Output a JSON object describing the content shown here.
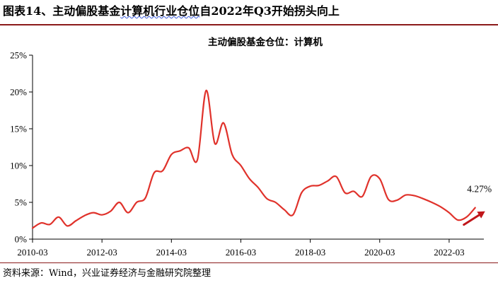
{
  "figure": {
    "number": "图表14、",
    "title_prefix": "主动偏股基金",
    "title_squiggle": "计算机行业仓位",
    "title_suffix": "自2022年Q3开始拐头向上",
    "source": "资料来源：Wind，兴业证券经济与金融研究院整理"
  },
  "colors": {
    "line": "#e0322b",
    "arrow": "#c0161a",
    "rule": "#8b1a1a",
    "axis": "#000000"
  },
  "chart_data": {
    "type": "line",
    "title": "主动偏股基金仓位：计算机",
    "xlabel": "",
    "ylabel": "",
    "x_ticks": [
      "2010-03",
      "2012-03",
      "2014-03",
      "2016-03",
      "2018-03",
      "2020-03",
      "2022-03"
    ],
    "y_ticks": [
      "0%",
      "5%",
      "10%",
      "15%",
      "20%",
      "25%"
    ],
    "ylim": [
      0,
      25
    ],
    "xlim": [
      "2010-03",
      "2023-03"
    ],
    "grid": false,
    "legend": "none",
    "series": [
      {
        "x": [
          "2010-03",
          "2010-06",
          "2010-09",
          "2010-12",
          "2011-03",
          "2011-06",
          "2011-09",
          "2011-12",
          "2012-03",
          "2012-06",
          "2012-09",
          "2012-12",
          "2013-03",
          "2013-06",
          "2013-09",
          "2013-12",
          "2014-03",
          "2014-06",
          "2014-09",
          "2014-12",
          "2015-03",
          "2015-06",
          "2015-09",
          "2015-12",
          "2016-03",
          "2016-06",
          "2016-09",
          "2016-12",
          "2017-03",
          "2017-06",
          "2017-09",
          "2017-12",
          "2018-03",
          "2018-06",
          "2018-09",
          "2018-12",
          "2019-03",
          "2019-06",
          "2019-09",
          "2019-12",
          "2020-03",
          "2020-06",
          "2020-09",
          "2020-12",
          "2021-03",
          "2021-06",
          "2021-09",
          "2021-12",
          "2022-03",
          "2022-06",
          "2022-09",
          "2022-12"
        ],
        "y": [
          1.5,
          2.2,
          2.0,
          3.0,
          1.8,
          2.5,
          3.2,
          3.6,
          3.3,
          3.8,
          5.0,
          3.6,
          5.0,
          5.6,
          9.0,
          9.3,
          11.5,
          12.0,
          12.4,
          10.8,
          20.2,
          13.0,
          15.8,
          11.5,
          10.0,
          8.2,
          7.0,
          5.5,
          5.0,
          4.0,
          3.3,
          6.3,
          7.2,
          7.3,
          7.9,
          8.5,
          6.3,
          6.5,
          5.8,
          8.5,
          8.2,
          5.4,
          5.3,
          6.0,
          5.9,
          5.5,
          5.0,
          4.4,
          3.6,
          2.6,
          3.0,
          4.27
        ]
      }
    ],
    "annotations": [
      {
        "text": "4.27%"
      }
    ]
  }
}
